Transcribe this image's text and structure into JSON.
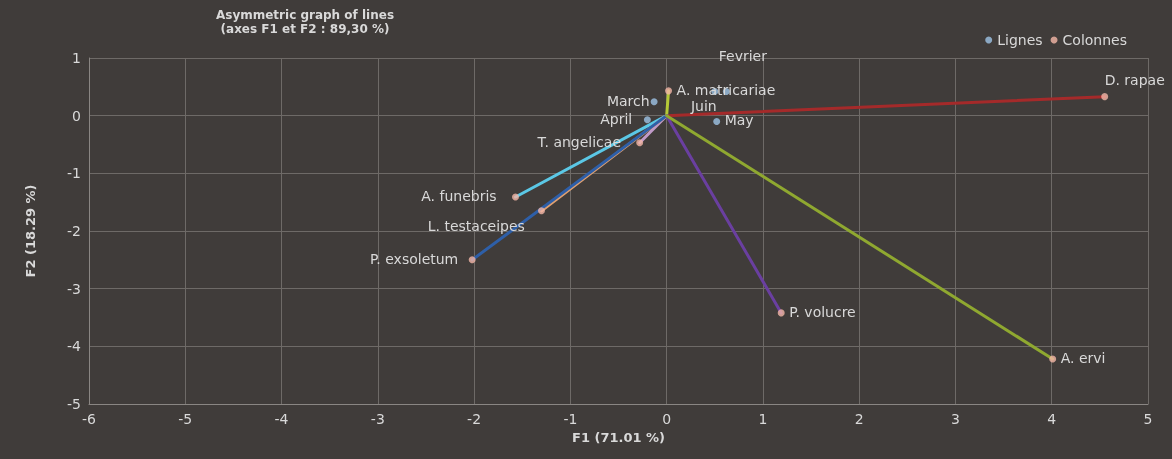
{
  "chart_data": {
    "type": "scatter",
    "title": "Asymmetric graph of lines",
    "subtitle": "(axes F1 et F2 : 89,30 %)",
    "xlabel": "F1 (71.01 %)",
    "ylabel": "F2 (18.29 %)",
    "xlim": [
      -6,
      5
    ],
    "xticks": [
      -6,
      -5,
      -4,
      -3,
      -2,
      -1,
      0,
      1,
      2,
      3,
      4,
      5
    ],
    "ylim": [
      -5,
      1
    ],
    "yticks": [
      -5,
      -4,
      -3,
      -2,
      -1,
      0,
      1
    ],
    "grid": true,
    "legend": "top right",
    "series": [
      {
        "name": "Lignes",
        "type": "scatter",
        "color": "#9dc3e6",
        "x": [
          -0.13,
          -0.2,
          0.52,
          0.5,
          0.62
        ],
        "values": [
          0.24,
          -0.07,
          -0.1,
          0.42,
          0.42
        ]
      },
      {
        "name": "Colonnes",
        "type": "scatter",
        "color": "#f4b6a8",
        "x": [
          4.55,
          0.02,
          -0.28,
          -1.57,
          -1.3,
          -2.02,
          1.19,
          4.01
        ],
        "values": [
          0.33,
          0.43,
          -0.47,
          -1.41,
          -1.65,
          -2.5,
          -3.42,
          -4.22
        ]
      },
      {
        "type": "line",
        "color": "#a52a2a",
        "x": [
          0,
          4.55
        ],
        "values": [
          0,
          0.33
        ]
      },
      {
        "type": "line",
        "color": "#b5c936",
        "x": [
          0,
          0.02
        ],
        "values": [
          0,
          0.43
        ]
      },
      {
        "type": "line",
        "color": "#c09ac8",
        "x": [
          0,
          -0.28
        ],
        "values": [
          0,
          -0.47
        ]
      },
      {
        "type": "line",
        "color": "#5bc8e6",
        "x": [
          0,
          -1.57
        ],
        "values": [
          0,
          -1.41
        ]
      },
      {
        "type": "line",
        "color": "#e0a070",
        "x": [
          0,
          -1.3
        ],
        "values": [
          0,
          -1.65
        ]
      },
      {
        "type": "line",
        "color": "#2e5fa8",
        "x": [
          0,
          -2.02
        ],
        "values": [
          0,
          -2.5
        ]
      },
      {
        "type": "line",
        "color": "#6a3fa0",
        "x": [
          0,
          1.19
        ],
        "values": [
          0,
          -3.42
        ]
      },
      {
        "type": "line",
        "color": "#8fa830",
        "x": [
          0,
          4.01
        ],
        "values": [
          0,
          -4.22
        ]
      }
    ],
    "annotations": [
      {
        "text": "D. rapae",
        "x": 4.55,
        "y": 0.33
      },
      {
        "text": "A. matricariae",
        "x": 0.02,
        "y": 0.43
      },
      {
        "text": "T. angelicae",
        "x": -0.28,
        "y": -0.47
      },
      {
        "text": "A. funebris",
        "x": -1.57,
        "y": -1.41
      },
      {
        "text": "L. testaceipes",
        "x": -1.3,
        "y": -1.65
      },
      {
        "text": "P. exsoletum",
        "x": -2.02,
        "y": -2.5
      },
      {
        "text": "P. volucre",
        "x": 1.19,
        "y": -3.42
      },
      {
        "text": "A. ervi",
        "x": 4.01,
        "y": -4.22
      },
      {
        "text": "March",
        "x": -0.13,
        "y": 0.24
      },
      {
        "text": "April",
        "x": -0.2,
        "y": -0.07
      },
      {
        "text": "May",
        "x": 0.52,
        "y": -0.1
      },
      {
        "text": "Fevrier",
        "x": 0.5,
        "y": 0.42
      },
      {
        "text": "Juin",
        "x": 0.62,
        "y": 0.42
      }
    ]
  }
}
